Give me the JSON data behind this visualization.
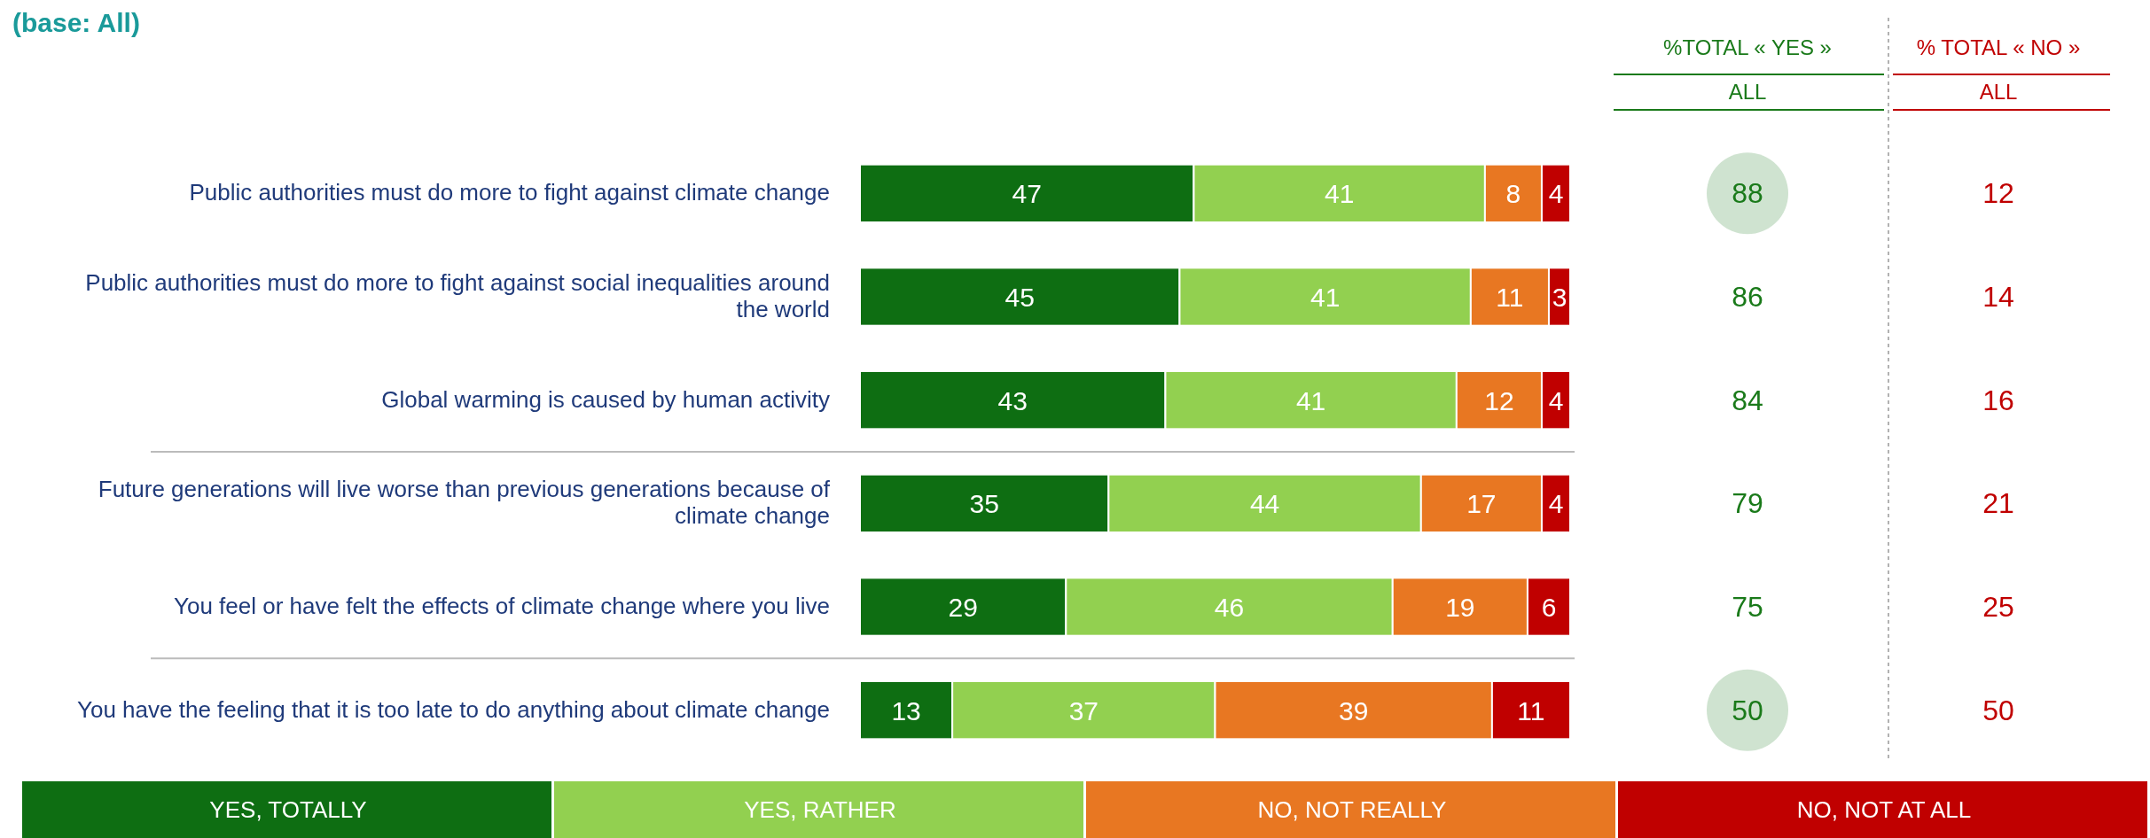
{
  "chart_data": {
    "type": "bar",
    "orientation": "horizontal",
    "stacked": true,
    "title": "(base: All)",
    "categories": [
      "Public authorities must do more to fight against climate change",
      "Public authorities must do more to fight against social inequalities around the world",
      "Global warming is caused by human activity",
      "Future generations will live worse than previous generations because of climate change",
      "You feel or have felt the effects of climate change where you live",
      "You have the feeling that it is too late to do anything about climate change"
    ],
    "series": [
      {
        "name": "YES, TOTALLY",
        "color": "#0e6e12",
        "values": [
          47,
          45,
          43,
          35,
          29,
          13
        ]
      },
      {
        "name": "YES, RATHER",
        "color": "#92d050",
        "values": [
          41,
          41,
          41,
          44,
          46,
          37
        ]
      },
      {
        "name": "NO, NOT REALLY",
        "color": "#e87722",
        "values": [
          8,
          11,
          12,
          17,
          19,
          39
        ]
      },
      {
        "name": "NO, NOT AT ALL",
        "color": "#c00000",
        "values": [
          4,
          3,
          4,
          4,
          6,
          11
        ]
      }
    ],
    "xlim": [
      0,
      100
    ],
    "data_labels": true,
    "legend": "bottom",
    "annotations": [
      "%TOTAL « YES »",
      "ALL",
      "% TOTAL « NO »",
      "ALL",
      "88",
      "86",
      "84",
      "79",
      "75",
      "50",
      "12",
      "14",
      "16",
      "21",
      "25",
      "50"
    ]
  }
}
